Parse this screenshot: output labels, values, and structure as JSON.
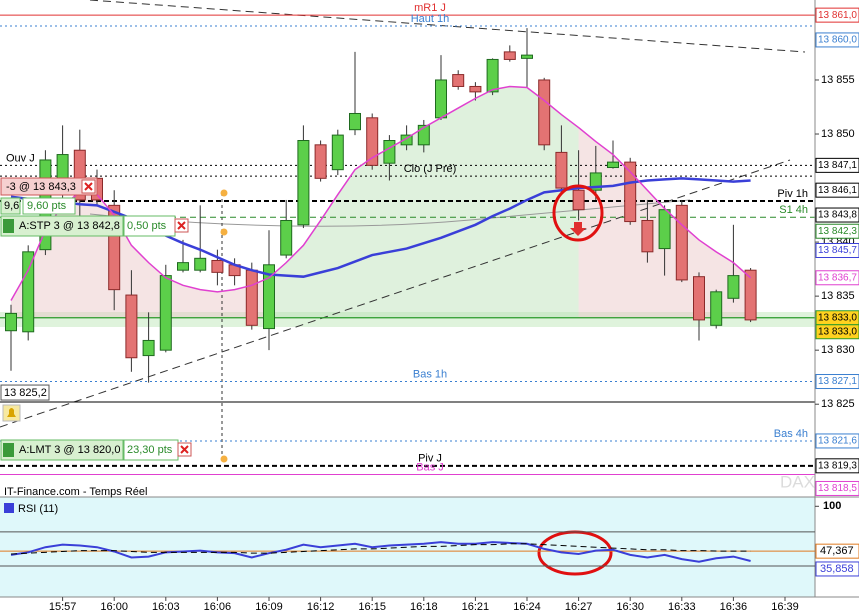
{
  "chart_data": {
    "type": "candlestick",
    "source": "IT-Finance.com - Temps Réel",
    "watermark": "DAX",
    "categories": [
      null,
      null,
      null,
      "15:57",
      null,
      null,
      "16:00",
      null,
      null,
      "16:03",
      null,
      null,
      "16:06",
      null,
      null,
      "16:09",
      null,
      null,
      "16:12",
      null,
      null,
      "16:15",
      null,
      null,
      "16:18",
      null,
      null,
      "16:21",
      null,
      null,
      "16:24",
      null,
      null,
      "16:27",
      null,
      null,
      "16:30",
      null,
      null,
      "16:33",
      null,
      null,
      "16:36",
      null,
      null,
      "16:39"
    ],
    "open": [
      13831.8,
      13831.7,
      13839.3,
      13845.3,
      13848.5,
      13845.9,
      13843.4,
      13835.1,
      13829.5,
      13830.0,
      13837.4,
      13837.4,
      13838.3,
      13837.9,
      13837.4,
      13832.0,
      13838.8,
      13841.6,
      13849.0,
      13846.7,
      13850.4,
      13851.5,
      13847.3,
      13849.0,
      13849.0,
      13851.5,
      13855.5,
      13854.4,
      13853.9,
      13857.6,
      13857.0,
      13855.0,
      13848.3,
      13844.8,
      13844.8,
      13846.9,
      13847.4,
      13842.0,
      13839.4,
      13843.4,
      13836.8,
      13832.3,
      13834.8,
      13837.4,
      null,
      null
    ],
    "high": [
      13834.2,
      13839.7,
      13848.5,
      13850.8,
      13850.4,
      13846.7,
      13844.8,
      13837.4,
      13833.5,
      13837.9,
      13840.2,
      13843.4,
      13839.3,
      13838.5,
      13838.1,
      13841.1,
      13843.9,
      13850.8,
      13849.4,
      13850.4,
      13857.6,
      13851.9,
      13849.9,
      13850.8,
      13851.3,
      13857.3,
      13855.9,
      13854.8,
      13857.0,
      13858.2,
      13859.8,
      13855.2,
      13850.8,
      13848.5,
      13848.9,
      13849.4,
      13847.8,
      13843.9,
      13843.4,
      13843.9,
      13837.2,
      13835.6,
      13841.6,
      13837.6,
      null,
      null
    ],
    "low": [
      13828.1,
      13830.9,
      13838.8,
      13843.9,
      13841.1,
      13843.4,
      13833.7,
      13828.0,
      13827.0,
      13829.8,
      13837.2,
      13837.2,
      13836.0,
      13836.0,
      13831.9,
      13830.0,
      13838.5,
      13841.3,
      13845.6,
      13846.2,
      13849.9,
      13846.7,
      13845.7,
      13848.5,
      13848.3,
      13851.3,
      13854.1,
      13853.1,
      13853.6,
      13856.7,
      13854.3,
      13848.5,
      13844.4,
      13842.0,
      13843.9,
      13846.8,
      13841.6,
      13838.1,
      13836.9,
      13836.3,
      13830.9,
      13832.0,
      13834.4,
      13832.6,
      null,
      null
    ],
    "close": [
      13833.4,
      13839.1,
      13847.6,
      13848.1,
      13843.9,
      13843.9,
      13835.6,
      13829.3,
      13830.9,
      13836.9,
      13838.1,
      13838.5,
      13837.2,
      13836.9,
      13832.3,
      13837.9,
      13842.0,
      13849.4,
      13845.9,
      13849.9,
      13851.9,
      13847.1,
      13849.4,
      13849.9,
      13850.8,
      13855.0,
      13854.4,
      13853.9,
      13856.9,
      13856.9,
      13857.3,
      13849.0,
      13845.0,
      13843.0,
      13846.4,
      13847.4,
      13841.9,
      13839.1,
      13843.0,
      13836.5,
      13832.8,
      13835.4,
      13836.9,
      13832.8,
      null,
      null
    ],
    "up_color": "#5ccf4a",
    "down_color": "#e37373",
    "ylim": [
      13816.6,
      13862.4
    ],
    "yticks": [
      {
        "value": 13825,
        "label": "13 825"
      },
      {
        "value": 13830,
        "label": "13 830"
      },
      {
        "value": 13835,
        "label": "13 835"
      },
      {
        "value": 13840,
        "label": "13 840"
      },
      {
        "value": 13850,
        "label": "13 850"
      },
      {
        "value": 13855,
        "label": "13 855"
      }
    ],
    "moving_averages": [
      {
        "color": "#3a3fd8",
        "label": "13 845,7",
        "values": [
          13844.2,
          13844.0,
          13843.9,
          13843.7,
          13843.5,
          13843.4,
          13842.8,
          13842.2,
          13841.4,
          13840.6,
          13839.9,
          13839.3,
          13838.6,
          13837.9,
          13837.4,
          13837.0,
          13836.9,
          13836.8,
          13837.2,
          13837.6,
          13838.2,
          13838.8,
          13839.1,
          13839.4,
          13839.9,
          13840.4,
          13841.0,
          13841.6,
          13842.4,
          13843.1,
          13843.9,
          13844.6,
          13844.8,
          13845.0,
          13845.1,
          13845.2,
          13845.5,
          13845.7,
          13845.8,
          13845.9,
          13845.8,
          13845.7,
          13845.6,
          13845.7,
          null,
          null
        ]
      },
      {
        "color": "#e040d0",
        "label": "13 836,7",
        "values": [
          13834.6,
          13837.4,
          13841.1,
          13843.4,
          13844.6,
          13844.4,
          13842.5,
          13839.7,
          13838.1,
          13836.7,
          13836.0,
          13835.6,
          13835.4,
          13835.6,
          13836.0,
          13836.7,
          13838.1,
          13839.7,
          13842.0,
          13844.4,
          13846.7,
          13847.8,
          13848.7,
          13849.6,
          13850.6,
          13851.5,
          13852.4,
          13853.3,
          13854.1,
          13854.4,
          13854.3,
          13853.1,
          13851.8,
          13850.6,
          13849.3,
          13848.1,
          13846.5,
          13844.8,
          13843.1,
          13841.6,
          13840.2,
          13839.1,
          13838.1,
          13836.7,
          null,
          null
        ]
      }
    ],
    "levels": [
      {
        "name": "mR1 J",
        "value": 13861,
        "label": "13 861,0",
        "color": "#e03030",
        "dash": "solid",
        "name_align": "center"
      },
      {
        "name": "Haut 1h",
        "value": 13860,
        "label": "13 860,0",
        "color": "#3a7fd0",
        "dash": "dotted",
        "name_align": "center"
      },
      {
        "name": "Ouv J",
        "value": 13847.1,
        "label": "13 847,1",
        "color": "#000000",
        "dash": "dotted",
        "name_align": "left"
      },
      {
        "name": "Clo (J Pré)",
        "value": 13846.1,
        "label": "13 846,1",
        "color": "#000000",
        "dash": "dotted",
        "name_align": "center"
      },
      {
        "name": "Piv 1h",
        "value": 13843.8,
        "label": "13 843,8",
        "color": "#000000",
        "dash": "bold",
        "name_align": "right"
      },
      {
        "name": "S1 4h",
        "value": 13842.3,
        "label": "13 842,3",
        "color": "#2a8a2a",
        "dash": "dashed",
        "name_align": "right"
      },
      {
        "value": 13833,
        "label": "13 833,0",
        "color": "#2a9a2a",
        "dash": "solid",
        "fill": "#ffd21f"
      },
      {
        "value": 13833,
        "label": "13 833,0",
        "color": "#2a9a2a",
        "dash": "solid",
        "fill": "#ffd21f"
      },
      {
        "name": "Bas 1h",
        "value": 13827.1,
        "label": "13 827,1",
        "color": "#3a7fd0",
        "dash": "dotted",
        "name_align": "center"
      },
      {
        "value": 13825.2,
        "label": "13 825,2",
        "color": "#000000",
        "dash": "solid",
        "label_side": "left"
      },
      {
        "name": "Bas 4h",
        "value": 13821.6,
        "label": "13 821,6",
        "color": "#3a7fd0",
        "dash": "dotted",
        "name_align": "right"
      },
      {
        "name": "Piv J",
        "value": 13819.3,
        "label": "13 819,3",
        "color": "#000000",
        "dash": "bold",
        "name_align": "center"
      },
      {
        "name": "Bas J",
        "value": 13818.5,
        "label": "13 818,5",
        "color": "#e040d0",
        "dash": "solid",
        "name_align": "center"
      }
    ],
    "orders": [
      {
        "text": "-3 @ 13 843,3"
      },
      {
        "text": "9,6",
        "pts": "9,60 pts"
      },
      {
        "text": "A:STP 3 @ 13 842,8",
        "pts": "0,50 pts"
      },
      {
        "text": "A:LMT 3 @ 13 820,0",
        "pts": "23,30 pts"
      }
    ],
    "rsi": {
      "title": "RSI (11)",
      "ylim": [
        -6.4,
        110.9
      ],
      "yticks": [
        100
      ],
      "levels": [
        {
          "value": 70,
          "color": "#555555"
        },
        {
          "value": 30,
          "color": "#555555"
        },
        {
          "value": 47.367,
          "label": "47,367",
          "color": "#e07a20"
        }
      ],
      "series": [
        {
          "color": "#3a3fd8",
          "label": "35,858",
          "values": [
            43,
            46,
            52,
            55,
            54,
            52,
            47,
            40,
            41,
            46,
            47,
            48,
            46,
            45,
            40,
            45,
            49,
            55,
            52,
            54,
            56,
            52,
            54,
            55,
            56,
            58,
            56,
            56,
            58,
            57,
            56,
            50,
            46,
            44,
            48,
            49,
            43,
            40,
            43,
            38,
            35,
            39,
            41,
            35.858,
            null,
            null
          ]
        },
        {
          "color": "#000000",
          "dash": "dashed",
          "values": [
            44,
            45,
            46,
            47,
            48,
            48,
            48,
            47,
            46,
            46,
            46,
            46,
            46,
            46,
            45,
            45,
            46,
            47,
            48,
            49,
            50,
            50,
            51,
            52,
            53,
            53,
            54,
            55,
            55,
            56,
            56,
            55,
            54,
            53,
            52,
            51,
            50,
            49,
            49,
            48,
            48,
            47.5,
            47.4,
            47.367,
            null,
            null
          ]
        }
      ]
    }
  }
}
